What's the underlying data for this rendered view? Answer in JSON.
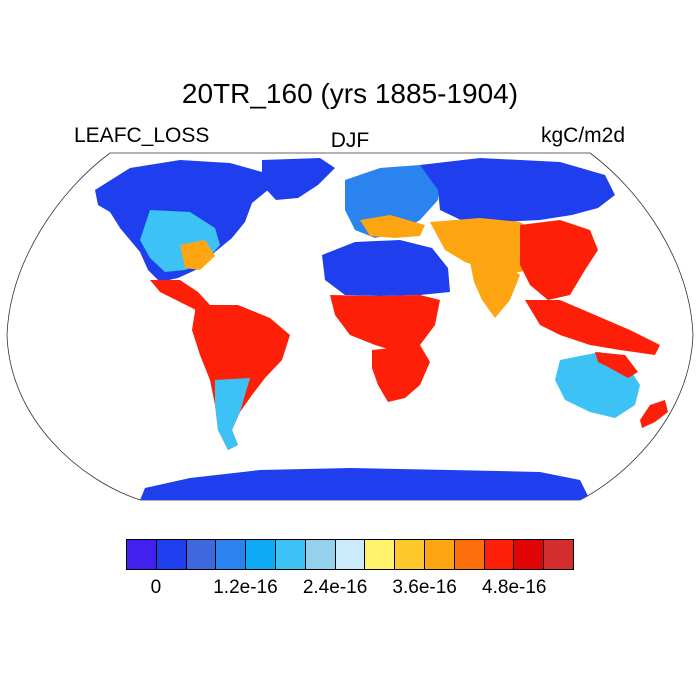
{
  "title": "20TR_160 (yrs 1885-1904)",
  "left_label": "LEAFC_LOSS",
  "center_label": "DJF",
  "right_label": "kgC/m2d",
  "chart_data": {
    "type": "heatmap",
    "projection": "robinson",
    "variable": "LEAFC_LOSS",
    "season": "DJF",
    "units": "kgC/m2d",
    "colorbar": {
      "colors": [
        "#4120f0",
        "#1f3fef",
        "#3f68dc",
        "#2b83f0",
        "#0faaf5",
        "#3cc2f4",
        "#95d0ed",
        "#cdeafb",
        "#fef36b",
        "#fec82a",
        "#fea512",
        "#fd6f0a",
        "#fe1f08",
        "#e00507",
        "#d42d2d"
      ],
      "tick_labels": [
        "0",
        "1.2e-16",
        "2.4e-16",
        "3.6e-16",
        "4.8e-16"
      ]
    },
    "regions": [
      {
        "name": "North America",
        "level": "low"
      },
      {
        "name": "Eastern United States",
        "level": "medium"
      },
      {
        "name": "Central America",
        "level": "high"
      },
      {
        "name": "Amazon",
        "level": "high"
      },
      {
        "name": "Southern South America",
        "level": "medium"
      },
      {
        "name": "Greenland",
        "level": "lowest"
      },
      {
        "name": "Europe",
        "level": "medium"
      },
      {
        "name": "Sahara",
        "level": "lowest"
      },
      {
        "name": "Central Africa",
        "level": "high"
      },
      {
        "name": "Southern Africa",
        "level": "high"
      },
      {
        "name": "Siberia",
        "level": "low"
      },
      {
        "name": "East Asia",
        "level": "high"
      },
      {
        "name": "Southeast Asia",
        "level": "high"
      },
      {
        "name": "Australia",
        "level": "medium"
      },
      {
        "name": "Antarctica",
        "level": "lowest"
      }
    ]
  }
}
